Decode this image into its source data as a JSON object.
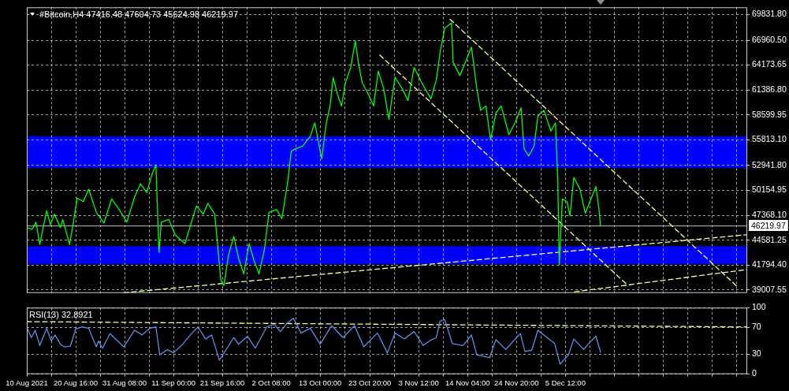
{
  "chart_data": [
    {
      "type": "line",
      "title": "#Bitcoin,H4 47416.48 47604.73 45624.98 46219.97",
      "xlim": [
        "2021-08-10T00:00",
        "2022-01-14T04:00"
      ],
      "xticks": [
        {
          "value": "2021-08-10T00:00",
          "label": null
        },
        {
          "value": "2021-08-15T08:00",
          "label": null
        },
        {
          "value": "2021-08-20T16:00",
          "label": null
        },
        {
          "value": "2021-08-26T00:00",
          "label": null
        },
        {
          "value": "2021-08-31T08:00",
          "label": null
        },
        {
          "value": "2021-09-05T16:00",
          "label": null
        },
        {
          "value": "2021-09-11T00:00",
          "label": null
        },
        {
          "value": "2021-09-16T08:00",
          "label": null
        },
        {
          "value": "2021-09-21T16:00",
          "label": null
        },
        {
          "value": "2021-09-27T00:00",
          "label": null
        },
        {
          "value": "2021-10-02T08:00",
          "label": null
        },
        {
          "value": "2021-10-07T16:00",
          "label": null
        },
        {
          "value": "2021-10-13T00:00",
          "label": null
        },
        {
          "value": "2021-10-18T08:00",
          "label": null
        },
        {
          "value": "2021-10-23T20:00",
          "label": null
        },
        {
          "value": "2021-10-29T04:00",
          "label": null
        },
        {
          "value": "2021-11-03T12:00",
          "label": null
        },
        {
          "value": "2021-11-08T20:00",
          "label": null
        },
        {
          "value": "2021-11-14T04:00",
          "label": null
        },
        {
          "value": "2021-11-19T12:00",
          "label": null
        },
        {
          "value": "2021-11-24T20:00",
          "label": null
        },
        {
          "value": "2021-11-30T04:00",
          "label": null
        },
        {
          "value": "2021-12-05T12:00",
          "label": null
        },
        {
          "value": "2021-12-10T20:00",
          "label": null
        },
        {
          "value": "2021-12-16T04:00",
          "label": null
        },
        {
          "value": "2021-12-21T12:00",
          "label": null
        },
        {
          "value": "2021-12-26T20:00",
          "label": null
        },
        {
          "value": "2022-01-01T04:00",
          "label": null
        },
        {
          "value": "2022-01-06T12:00",
          "label": null
        },
        {
          "value": "2022-01-11T20:00",
          "label": null
        }
      ],
      "ylim": [
        38670,
        70640
      ],
      "yticks": [
        39007.55,
        {
          "value": 41794.4,
          "label": "41794.40"
        },
        44581.25,
        {
          "value": 47368.1,
          "label": "47368.10"
        },
        50154.95,
        {
          "value": 52941.8,
          "label": "52941.80"
        },
        {
          "value": 55813.1,
          "label": "55813.10"
        },
        58599.95,
        {
          "value": 61386.8,
          "label": "61386.80"
        },
        64173.65,
        {
          "value": 66960.5,
          "label": "66960.50"
        },
        {
          "value": 69831.8,
          "label": "69831.80"
        }
      ],
      "grid": true,
      "tick_labels": "y",
      "bands": [
        {
          "axis": "y",
          "from": 52700,
          "to": 56200,
          "color": "#0000ff"
        },
        {
          "axis": "y",
          "from": 41900,
          "to": 43900,
          "color": "#0000ff"
        }
      ],
      "ref_lines": [
        {
          "axis": "y",
          "value": 46219.97,
          "label": "46219.97",
          "color": "#c0c0c0"
        }
      ],
      "series": [
        {
          "color": "#00ff00",
          "line_style": "solid",
          "x": [
            "2021-08-10T00:00",
            "2021-08-11T04:00",
            "2021-08-12T00:00",
            "2021-08-12T20:00",
            "2021-08-14T08:00",
            "2021-08-15T04:00",
            "2021-08-16T00:00",
            "2021-08-17T08:00",
            "2021-08-17T20:00",
            "2021-08-19T08:00",
            "2021-08-20T04:00",
            "2021-08-21T00:00",
            "2021-08-22T08:00",
            "2021-08-23T12:00",
            "2021-08-25T04:00",
            "2021-08-26T20:00",
            "2021-08-28T12:00",
            "2021-08-30T04:00",
            "2021-08-31T20:00",
            "2021-09-02T12:00",
            "2021-09-03T20:00",
            "2021-09-05T04:00",
            "2021-09-06T08:00",
            "2021-09-07T04:00",
            "2021-09-07T20:00",
            "2021-09-08T08:00",
            "2021-09-10T00:00",
            "2021-09-11T08:00",
            "2021-09-13T12:00",
            "2021-09-16T00:00",
            "2021-09-17T12:00",
            "2021-09-18T12:00",
            "2021-09-20T00:00",
            "2021-09-20T20:00",
            "2021-09-21T08:00",
            "2021-09-22T00:00",
            "2021-09-23T00:00",
            "2021-09-24T04:00",
            "2021-09-25T04:00",
            "2021-09-26T08:00",
            "2021-09-27T12:00",
            "2021-09-28T12:00",
            "2021-09-29T16:00",
            "2021-09-30T20:00",
            "2021-10-01T20:00",
            "2021-10-03T12:00",
            "2021-10-04T16:00",
            "2021-10-06T00:00",
            "2021-10-06T16:00",
            "2021-10-07T12:00",
            "2021-10-09T04:00",
            "2021-10-10T20:00",
            "2021-10-11T20:00",
            "2021-10-13T08:00",
            "2021-10-14T08:00",
            "2021-10-15T04:00",
            "2021-10-15T20:00",
            "2021-10-16T20:00",
            "2021-10-17T16:00",
            "2021-10-18T12:00",
            "2021-10-19T16:00",
            "2021-10-20T16:00",
            "2021-10-21T08:00",
            "2021-10-22T04:00",
            "2021-10-23T08:00",
            "2021-10-24T16:00",
            "2021-10-25T16:00",
            "2021-10-26T20:00",
            "2021-10-28T00:00",
            "2021-10-29T08:00",
            "2021-10-30T20:00",
            "2021-11-01T04:00",
            "2021-11-02T12:00",
            "2021-11-04T04:00",
            "2021-11-06T04:00",
            "2021-11-07T08:00",
            "2021-11-08T04:00",
            "2021-11-09T04:00",
            "2021-11-10T16:00",
            "2021-11-11T00:00",
            "2021-11-12T12:00",
            "2021-11-14T00:00",
            "2021-11-15T00:00",
            "2021-11-16T04:00",
            "2021-11-17T00:00",
            "2021-11-18T04:00",
            "2021-11-19T04:00",
            "2021-11-20T08:00",
            "2021-11-21T12:00",
            "2021-11-23T04:00",
            "2021-11-24T12:00",
            "2021-11-25T20:00",
            "2021-11-26T12:00",
            "2021-11-27T12:00",
            "2021-11-28T16:00",
            "2021-11-29T12:00",
            "2021-11-30T20:00",
            "2021-12-02T08:00",
            "2021-12-03T08:00",
            "2021-12-03T20:00",
            "2021-12-04T04:00",
            "2021-12-04T20:00",
            "2021-12-05T20:00",
            "2021-12-06T12:00",
            "2021-12-07T08:00",
            "2021-12-08T16:00",
            "2021-12-09T20:00",
            "2021-12-11T04:00",
            "2021-12-12T04:00",
            "2021-12-12T20:00",
            "2021-12-13T04:00"
          ],
          "values": [
            46000,
            45800,
            46600,
            44100,
            47900,
            46300,
            47500,
            46000,
            46900,
            44100,
            46600,
            49300,
            48900,
            50300,
            47700,
            46500,
            49200,
            48000,
            46600,
            49400,
            50900,
            49900,
            52000,
            53000,
            43200,
            46600,
            46900,
            45200,
            44200,
            48400,
            47500,
            48700,
            47500,
            42900,
            40100,
            39500,
            42900,
            45000,
            42600,
            40800,
            44200,
            42400,
            40800,
            43500,
            47700,
            48000,
            47000,
            51400,
            54500,
            54800,
            55100,
            56200,
            57700,
            53700,
            57700,
            59600,
            62800,
            60800,
            59600,
            62200,
            63900,
            66900,
            64500,
            62200,
            61100,
            59600,
            63500,
            61600,
            58100,
            62800,
            61600,
            60200,
            63900,
            62200,
            60400,
            62500,
            65600,
            68300,
            68900,
            64500,
            63000,
            64900,
            66200,
            61600,
            59100,
            59600,
            55800,
            58800,
            59600,
            56400,
            57700,
            59400,
            54800,
            54000,
            55100,
            58500,
            59100,
            56800,
            57700,
            51400,
            41800,
            49200,
            48900,
            47300,
            51600,
            50300,
            47600,
            49300,
            50600,
            48000,
            46200
          ]
        },
        {
          "color": "#ffff99",
          "line_style": "dashed",
          "x": [
            "2021-08-31T04:00",
            "2022-01-14T04:00"
          ],
          "values": [
            38700,
            45200
          ]
        },
        {
          "color": "#ffff99",
          "line_style": "dashed",
          "x": [
            "2021-12-07T12:00",
            "2022-01-14T04:00"
          ],
          "values": [
            38800,
            41300
          ]
        },
        {
          "color": "#ffff99",
          "line_style": "dashed",
          "x": [
            "2021-11-10T08:00",
            "2022-01-12T04:00"
          ],
          "values": [
            69300,
            39300
          ]
        },
        {
          "color": "#ffff99",
          "line_style": "dashed",
          "x": [
            "2021-10-26T00:00",
            "2021-12-19T04:00"
          ],
          "values": [
            65300,
            39500
          ]
        }
      ]
    },
    {
      "type": "line",
      "title": "RSI(13) 32.8921",
      "xlim": [
        "2021-08-10T00:00",
        "2022-01-14T04:00"
      ],
      "xticks": [
        {
          "value": "2021-08-10T00:00",
          "label": "10 Aug 2021"
        },
        {
          "value": "2021-08-15T08:00",
          "label": null
        },
        {
          "value": "2021-08-20T16:00",
          "label": "20 Aug 16:00"
        },
        {
          "value": "2021-08-26T00:00",
          "label": null
        },
        {
          "value": "2021-08-31T08:00",
          "label": "31 Aug 08:00"
        },
        {
          "value": "2021-09-05T16:00",
          "label": null
        },
        {
          "value": "2021-09-11T00:00",
          "label": "11 Sep 00:00"
        },
        {
          "value": "2021-09-16T08:00",
          "label": null
        },
        {
          "value": "2021-09-21T16:00",
          "label": "21 Sep 16:00"
        },
        {
          "value": "2021-09-27T00:00",
          "label": null
        },
        {
          "value": "2021-10-02T08:00",
          "label": "2 Oct 08:00"
        },
        {
          "value": "2021-10-07T16:00",
          "label": null
        },
        {
          "value": "2021-10-13T00:00",
          "label": "13 Oct 00:00"
        },
        {
          "value": "2021-10-18T08:00",
          "label": null
        },
        {
          "value": "2021-10-23T20:00",
          "label": "23 Oct 20:00"
        },
        {
          "value": "2021-10-29T04:00",
          "label": null
        },
        {
          "value": "2021-11-03T12:00",
          "label": "3 Nov 12:00"
        },
        {
          "value": "2021-11-08T20:00",
          "label": null
        },
        {
          "value": "2021-11-14T04:00",
          "label": "14 Nov 04:00"
        },
        {
          "value": "2021-11-19T12:00",
          "label": null
        },
        {
          "value": "2021-11-24T20:00",
          "label": "24 Nov 20:00"
        },
        {
          "value": "2021-11-30T04:00",
          "label": null
        },
        {
          "value": "2021-12-05T12:00",
          "label": "5 Dec 12:00"
        },
        {
          "value": "2021-12-10T20:00",
          "label": null
        },
        {
          "value": "2021-12-16T04:00",
          "label": null
        },
        {
          "value": "2021-12-21T12:00",
          "label": null
        },
        {
          "value": "2021-12-26T20:00",
          "label": null
        },
        {
          "value": "2022-01-01T04:00",
          "label": null
        },
        {
          "value": "2022-01-06T12:00",
          "label": null
        },
        {
          "value": "2022-01-11T20:00",
          "label": null
        }
      ],
      "ylim": [
        0,
        100
      ],
      "yticks": [
        0,
        30,
        70,
        100
      ],
      "grid": true,
      "series": [
        {
          "color": "#5b8ee6",
          "line_style": "solid",
          "x": [
            "2021-08-10T04:00",
            "2021-08-11T00:00",
            "2021-08-11T20:00",
            "2021-08-12T20:00",
            "2021-08-14T08:00",
            "2021-08-15T08:00",
            "2021-08-16T04:00",
            "2021-08-17T08:00",
            "2021-08-18T04:00",
            "2021-08-19T12:00",
            "2021-08-20T16:00",
            "2021-08-22T00:00",
            "2021-08-23T12:00",
            "2021-08-25T04:00",
            "2021-08-25T16:00",
            "2021-08-26T12:00",
            "2021-08-28T04:00",
            "2021-08-29T12:00",
            "2021-08-31T04:00",
            "2021-09-02T12:00",
            "2021-09-04T04:00",
            "2021-09-05T20:00",
            "2021-09-07T04:00",
            "2021-09-08T00:00",
            "2021-09-09T16:00",
            "2021-09-11T00:00",
            "2021-09-13T00:00",
            "2021-09-14T16:00",
            "2021-09-16T08:00",
            "2021-09-18T00:00",
            "2021-09-19T08:00",
            "2021-09-21T00:00",
            "2021-09-22T12:00",
            "2021-09-24T04:00",
            "2021-09-25T04:00",
            "2021-09-27T04:00",
            "2021-09-28T20:00",
            "2021-10-01T08:00",
            "2021-10-03T00:00",
            "2021-10-04T08:00",
            "2021-10-05T20:00",
            "2021-10-07T04:00",
            "2021-10-08T20:00",
            "2021-10-10T20:00",
            "2021-10-13T00:00",
            "2021-10-15T12:00",
            "2021-10-18T00:00",
            "2021-10-20T12:00",
            "2021-10-22T12:00",
            "2021-10-25T12:00",
            "2021-10-27T16:00",
            "2021-10-29T08:00",
            "2021-10-31T08:00",
            "2021-11-02T12:00",
            "2021-11-04T12:00",
            "2021-11-05T20:00",
            "2021-11-07T08:00",
            "2021-11-08T04:00",
            "2021-11-09T04:00",
            "2021-11-10T20:00",
            "2021-11-13T04:00",
            "2021-11-15T00:00",
            "2021-11-16T04:00",
            "2021-11-19T00:00",
            "2021-11-20T08:00",
            "2021-11-22T12:00",
            "2021-11-24T04:00",
            "2021-11-25T16:00",
            "2021-11-26T16:00",
            "2021-11-28T04:00",
            "2021-11-29T12:00",
            "2021-12-01T12:00",
            "2021-12-03T04:00",
            "2021-12-04T08:00",
            "2021-12-06T04:00",
            "2021-12-07T08:00",
            "2021-12-09T12:00",
            "2021-12-10T20:00",
            "2021-12-12T04:00",
            "2021-12-13T04:00"
          ],
          "values": [
            68,
            55,
            66,
            43,
            69,
            50,
            59,
            45,
            41,
            42,
            68,
            71,
            69,
            41,
            50,
            39,
            61,
            52,
            41,
            66,
            59,
            69,
            71,
            29,
            37,
            32,
            45,
            59,
            71,
            53,
            59,
            21,
            37,
            55,
            45,
            57,
            39,
            71,
            75,
            64,
            77,
            84,
            62,
            69,
            45,
            73,
            55,
            73,
            41,
            62,
            32,
            62,
            53,
            64,
            43,
            50,
            55,
            80,
            82,
            46,
            43,
            59,
            29,
            25,
            52,
            37,
            50,
            61,
            34,
            36,
            66,
            55,
            46,
            15,
            29,
            53,
            37,
            48,
            57,
            33
          ]
        },
        {
          "color": "#ffff99",
          "line_style": "dashed",
          "x": [
            "2021-08-10T00:00",
            "2022-01-14T04:00"
          ],
          "values": [
            79,
            71
          ]
        }
      ]
    }
  ]
}
